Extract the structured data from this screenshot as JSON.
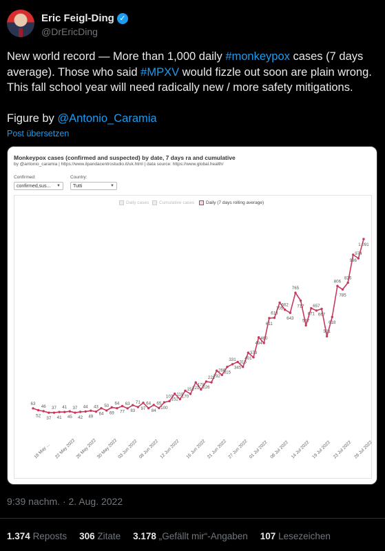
{
  "author": {
    "name": "Eric Feigl-Ding",
    "handle": "@DrEricDing",
    "verified_badge": "✓"
  },
  "tweet": {
    "line1_a": "New world record — More than 1,000 daily ",
    "line1_tag": "#monkeypox",
    "line1_b": " cases (7 days",
    "line2_a": "average). Those who said ",
    "line2_tag": "#MPXV",
    "line2_b": " would fizzle out soon are plain wrong.",
    "line3": "This fall school year will need radically new / more safety mitigations.",
    "line4_a": "Figure by ",
    "line4_mention": "@Antonio_Caramia"
  },
  "translate_label": "Post übersetzen",
  "card": {
    "title": "Monkeypox cases (confirmed and suspected) by date, 7 days ra and cumulative",
    "subtitle": "by @antonio_caramia | https://www.ilpandacentrostudio.it/uk.html | data source: https://www.global.health/",
    "filter1_label": "Confirmed:",
    "filter1_value": "confirmed,sus...",
    "filter2_label": "Country:",
    "filter2_value": "Tutti",
    "legend": [
      "Daily cases",
      "Cumulative cases",
      "Daily (7 days rolling average)"
    ]
  },
  "chart_data": {
    "type": "line",
    "series": [
      {
        "name": "Daily (7 days rolling average)",
        "color": "#c9385c",
        "values": [
          63,
          52,
          46,
          37,
          37,
          41,
          41,
          45,
          37,
          42,
          44,
          49,
          43,
          64,
          50,
          69,
          64,
          77,
          63,
          83,
          71,
          97,
          64,
          84,
          65,
          100,
          107,
          152,
          119,
          170,
          151,
          221,
          178,
          226,
          221,
          292,
          266,
          315,
          331,
          345,
          315,
          401,
          373,
          494,
          460,
          611,
          613,
          705,
          662,
          643,
          765,
          717,
          567,
          671,
          657,
          667,
          501,
          618,
          806,
          785,
          826,
          996,
          974,
          1091
        ],
        "labels": [
          "63",
          "52",
          "46",
          "37",
          "37",
          "41",
          "41",
          "45",
          "37",
          "42",
          "44",
          "49",
          "43",
          "64",
          "50",
          "69",
          "64",
          "77",
          "63",
          "83",
          "71",
          "97",
          "64",
          "84",
          "65",
          "100",
          "107",
          "152",
          "119",
          "170",
          "151",
          "221",
          "178",
          "226",
          "221",
          "292",
          "266",
          "315",
          "331",
          "345",
          "315",
          "401",
          "373",
          "494",
          "460",
          "611",
          "613",
          "705",
          "662",
          "643",
          "765",
          "717",
          "567",
          "671",
          "657",
          "667",
          "501",
          "618",
          "806",
          "785",
          "826",
          "996",
          "974",
          "1 091"
        ]
      }
    ],
    "x_tick_labels": [
      "18 May ...",
      "22 May 2022",
      "26 May 2022",
      "30 May 2022",
      "03 Jun 2022",
      "08 Jun 2022",
      "12 Jun 2022",
      "16 Jun 2022",
      "21 Jun 2022",
      "27 Jun 2022",
      "01 Jul 2022",
      "08 Jul 2022",
      "14 Jul 2022",
      "19 Jul 2022",
      "23 Jul 2022",
      "28 Jul 2022"
    ],
    "ylim": [
      0,
      1150
    ],
    "grid": false,
    "legend_position": "top-center"
  },
  "timestamp": "9:39 nachm. · 2. Aug. 2022",
  "stats": [
    {
      "count": "1.374",
      "label": "Reposts"
    },
    {
      "count": "306",
      "label": "Zitate"
    },
    {
      "count": "3.178",
      "label": "„Gefällt mir“-Angaben"
    },
    {
      "count": "107",
      "label": "Lesezeichen"
    }
  ]
}
